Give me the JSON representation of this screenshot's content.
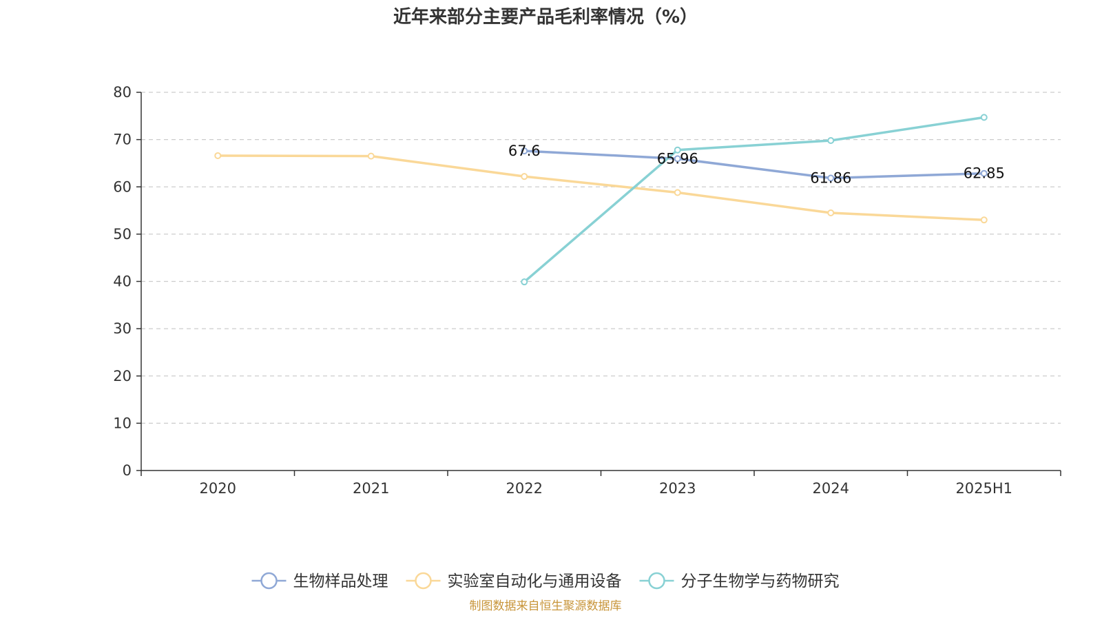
{
  "chart_data": {
    "type": "line",
    "title": "近年来部分主要产品毛利率情况（%）",
    "categories": [
      "2020",
      "2021",
      "2022",
      "2023",
      "2024",
      "2025H1"
    ],
    "ylim": [
      0,
      80
    ],
    "yticks": [
      "0",
      "10",
      "20",
      "30",
      "40",
      "50",
      "60",
      "70",
      "80"
    ],
    "grid": true,
    "legend_position": "bottom",
    "series": [
      {
        "name": "生物样品处理",
        "color": "#8fa8d6",
        "values": [
          null,
          null,
          67.6,
          65.96,
          61.86,
          62.85
        ],
        "labels": [
          null,
          null,
          "67.6",
          "65.96",
          "61.86",
          "62.85"
        ]
      },
      {
        "name": "实验室自动化与通用设备",
        "color": "#fad898",
        "values": [
          66.6,
          66.5,
          62.2,
          58.8,
          54.5,
          53.0
        ],
        "labels": [
          null,
          null,
          null,
          null,
          null,
          null
        ]
      },
      {
        "name": "分子生物学与药物研究",
        "color": "#88d1d4",
        "values": [
          null,
          null,
          39.9,
          67.8,
          69.8,
          74.7
        ],
        "labels": [
          null,
          null,
          null,
          null,
          null,
          null
        ]
      }
    ]
  },
  "footer": {
    "source": "制图数据来自恒生聚源数据库"
  }
}
